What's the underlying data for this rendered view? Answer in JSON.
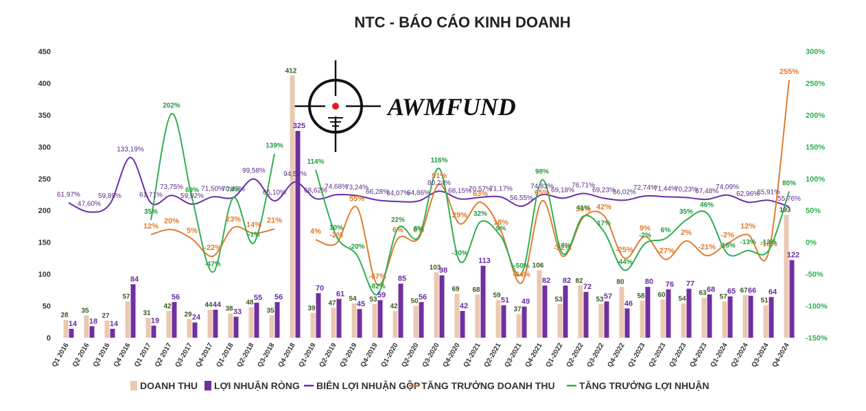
{
  "chart_data": {
    "type": "bar",
    "title": "NTC - BÁO CÁO KINH DOANH",
    "watermark": "AWMFUND",
    "categories": [
      "Q1 2016",
      "Q2 2016",
      "Q3 2016",
      "Q4 2016",
      "Q1 2017",
      "Q2 2017",
      "Q3-2017",
      "Q4-2017",
      "Q1-2018",
      "Q2-2018",
      "Q3-2018",
      "Q4-2018",
      "Q1-2019",
      "Q2-2019",
      "Q3-2019",
      "Q4-2019",
      "Q1-2020",
      "Q2-2020",
      "Q3-2020",
      "Q4-2020",
      "Q1-2021",
      "Q2-2021",
      "Q3-2021",
      "Q4-2021",
      "Q1-2022",
      "Q2-2022",
      "Q3-2022",
      "Q4-2022",
      "Q1-2023",
      "Q2-2023",
      "Q3-2023",
      "Q4-2023",
      "Q1-2024",
      "Q2-2024",
      "Q3-2024",
      "Q4-2024"
    ],
    "left_axis": {
      "min": 0,
      "max": 450,
      "step": 50,
      "ticks": [
        "0",
        "50",
        "100",
        "150",
        "200",
        "250",
        "300",
        "350",
        "400",
        "450"
      ]
    },
    "right_axis": {
      "min": -150,
      "max": 300,
      "step": 50,
      "ticks": [
        "-150%",
        "-100%",
        "-50%",
        "0%",
        "50%",
        "100%",
        "150%",
        "200%",
        "250%",
        "300%"
      ]
    },
    "series": [
      {
        "name": "DOANH THU",
        "kind": "bar",
        "axis": "left",
        "color": "#ebc8b0",
        "values": [
          28,
          35,
          27,
          57,
          31,
          42,
          29,
          44,
          38,
          48,
          35,
          412,
          39,
          47,
          54,
          53,
          42,
          50,
          103,
          69,
          68,
          59,
          37,
          106,
          53,
          82,
          53,
          80,
          58,
          60,
          54,
          63,
          57,
          67,
          51,
          193
        ],
        "labels": [
          "28",
          "35",
          "27",
          "57",
          "31",
          "42",
          "29",
          "44",
          "38",
          "48",
          "35",
          "412",
          "39",
          "47",
          "54",
          "53",
          "42",
          "50",
          "103",
          "69",
          "68",
          "59",
          "37",
          "106",
          "53",
          "82",
          "53",
          "80",
          "58",
          "60",
          "54",
          "63",
          "57",
          "67",
          "51",
          "193"
        ]
      },
      {
        "name": "LỢI NHUẬN RÒNG",
        "kind": "bar",
        "axis": "left",
        "color": "#7030a0",
        "values": [
          14,
          18,
          14,
          84,
          19,
          56,
          24,
          44,
          33,
          55,
          56,
          325,
          70,
          61,
          45,
          59,
          85,
          56,
          98,
          42,
          113,
          51,
          49,
          82,
          82,
          72,
          57,
          46,
          80,
          76,
          77,
          68,
          65,
          66,
          64,
          122
        ],
        "labels": [
          "14",
          "18",
          "14",
          "84",
          "19",
          "56",
          "24",
          "44",
          "33",
          "55",
          "56",
          "325",
          "70",
          "61",
          "45",
          "59",
          "85",
          "56",
          "98",
          "42",
          "113",
          "51",
          "49",
          "82",
          "82",
          "72",
          "57",
          "46",
          "80",
          "76",
          "77",
          "68",
          "65",
          "66",
          "64",
          "122"
        ]
      },
      {
        "name": "BIÊN LỢI NHUẬN GỘP",
        "kind": "line",
        "axis": "right",
        "color": "#6a2ca6",
        "values": [
          61.97,
          47.6,
          59.89,
          133.19,
          61.71,
          73.75,
          59.92,
          71.5,
          70.43,
          99.58,
          65.1,
          94.59,
          68.62,
          74.68,
          73.24,
          66.28,
          64.07,
          64.86,
          80.24,
          68.15,
          70.57,
          71.17,
          56.55,
          74.83,
          69.18,
          76.71,
          69.23,
          66.02,
          72.74,
          71.44,
          70.23,
          67.48,
          74.09,
          62.96,
          65.91,
          55.76
        ],
        "labels": [
          "61,97%",
          "47,60%",
          "59,89%",
          "133,19%",
          "61,71%",
          "73,75%",
          "59,92%",
          "71,50%",
          "70,43%",
          "99,58%",
          "65,10%",
          "94,59%",
          "68,62%",
          "74,68%",
          "73,24%",
          "66,28%",
          "64,07%",
          "64,86%",
          "80,24%",
          "68,15%",
          "70,57%",
          "71,17%",
          "56,55%",
          "74,83%",
          "69,18%",
          "76,71%",
          "69,23%",
          "66,02%",
          "72,74%",
          "71,44%",
          "70,23%",
          "67,48%",
          "74,09%",
          "62,96%",
          "65,91%",
          "55,76%"
        ]
      },
      {
        "name": "TĂNG TRƯỞNG DOANH THU",
        "kind": "line",
        "axis": "right",
        "color": "#e07b2f",
        "values": [
          null,
          null,
          null,
          null,
          12,
          20,
          5,
          -22,
          23,
          14,
          21,
          null,
          4,
          -2,
          55,
          -67,
          6,
          6,
          91,
          29,
          63,
          18,
          -64,
          65,
          -22,
          39,
          42,
          -25,
          9,
          -27,
          2,
          -21,
          -2,
          12,
          -16,
          255
        ],
        "labels": [
          "",
          "",
          "",
          "",
          "12%",
          "20%",
          "5%",
          "-22%",
          "23%",
          "14%",
          "21%",
          "",
          "4%",
          "-2%",
          "55%",
          "-67%",
          "6%",
          "6%",
          "91%",
          "29%",
          "63%",
          "18%",
          "-64%",
          "65%",
          "-22%",
          "39%",
          "42%",
          "-25%",
          "9%",
          "-27%",
          "2%",
          "-21%",
          "-2%",
          "12%",
          "-16%",
          "255%"
        ]
      },
      {
        "name": "TĂNG TRƯỞNG LỢI NHUẬN",
        "kind": "line",
        "axis": "right",
        "color": "#2fae4f",
        "values": [
          null,
          null,
          null,
          null,
          35,
          202,
          69,
          -47,
          70,
          -1,
          139,
          null,
          114,
          10,
          -20,
          -82,
          22,
          8,
          116,
          -30,
          32,
          9,
          -50,
          98,
          -18,
          41,
          17,
          -44,
          -2,
          6,
          35,
          46,
          -18,
          -13,
          -13,
          80
        ],
        "labels": [
          "",
          "",
          "",
          "",
          "35%",
          "202%",
          "69%",
          "-47%",
          "70%",
          "-1%",
          "139%",
          "",
          "114%",
          "10%",
          "-20%",
          "-82%",
          "22%",
          "8%",
          "116%",
          "-30%",
          "32%",
          "9%",
          "-50%",
          "98%",
          "-18%",
          "41%",
          "17%",
          "-44%",
          "-2%",
          "6%",
          "35%",
          "46%",
          "-18%",
          "-13%",
          "-13%",
          "80%"
        ]
      }
    ],
    "legend_position": "bottom",
    "grid": false
  }
}
